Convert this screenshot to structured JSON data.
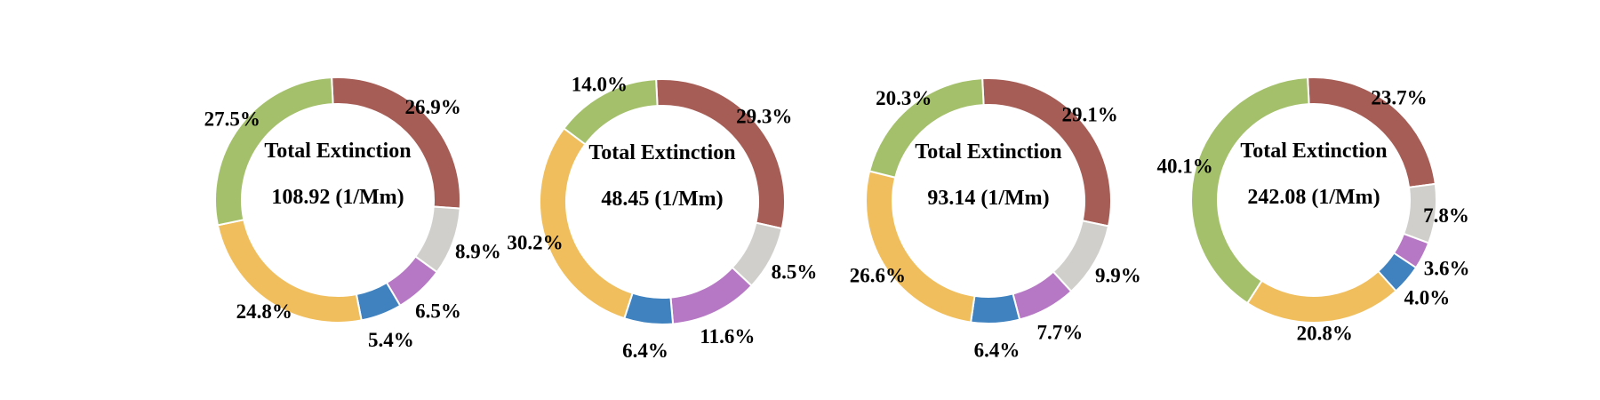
{
  "chart_data": [
    {
      "type": "pie",
      "donut": true,
      "center_title": "Total Extinction",
      "center_value": "108.92 (1/Mm)",
      "slices": [
        {
          "value": 26.9,
          "label": "26.9%",
          "color": "#a65d56"
        },
        {
          "value": 8.9,
          "label": "8.9%",
          "color": "#d0cfcb"
        },
        {
          "value": 6.5,
          "label": "6.5%",
          "color": "#b678c4"
        },
        {
          "value": 5.4,
          "label": "5.4%",
          "color": "#3f82bf"
        },
        {
          "value": 24.8,
          "label": "24.8%",
          "color": "#f0be5c"
        },
        {
          "value": 27.5,
          "label": "27.5%",
          "color": "#a4c06b"
        }
      ]
    },
    {
      "type": "pie",
      "donut": true,
      "center_title": "Total Extinction",
      "center_value": "48.45 (1/Mm)",
      "slices": [
        {
          "value": 29.3,
          "label": "29.3%",
          "color": "#a65d56"
        },
        {
          "value": 8.5,
          "label": "8.5%",
          "color": "#d0cfcb"
        },
        {
          "value": 11.6,
          "label": "11.6%",
          "color": "#b678c4"
        },
        {
          "value": 6.4,
          "label": "6.4%",
          "color": "#3f82bf"
        },
        {
          "value": 30.2,
          "label": "30.2%",
          "color": "#f0be5c"
        },
        {
          "value": 14.0,
          "label": "14.0%",
          "color": "#a4c06b"
        }
      ]
    },
    {
      "type": "pie",
      "donut": true,
      "center_title": "Total Extinction",
      "center_value": "93.14 (1/Mm)",
      "slices": [
        {
          "value": 29.1,
          "label": "29.1%",
          "color": "#a65d56"
        },
        {
          "value": 9.9,
          "label": "9.9%",
          "color": "#d0cfcb"
        },
        {
          "value": 7.7,
          "label": "7.7%",
          "color": "#b678c4"
        },
        {
          "value": 6.4,
          "label": "6.4%",
          "color": "#3f82bf"
        },
        {
          "value": 26.6,
          "label": "26.6%",
          "color": "#f0be5c"
        },
        {
          "value": 20.3,
          "label": "20.3%",
          "color": "#a4c06b"
        }
      ]
    },
    {
      "type": "pie",
      "donut": true,
      "center_title": "Total Extinction",
      "center_value": "242.08 (1/Mm)",
      "slices": [
        {
          "value": 23.7,
          "label": "23.7%",
          "color": "#a65d56"
        },
        {
          "value": 7.8,
          "label": "7.8%",
          "color": "#d0cfcb"
        },
        {
          "value": 3.6,
          "label": "3.6%",
          "color": "#b678c4"
        },
        {
          "value": 4.0,
          "label": "4.0%",
          "color": "#3f82bf"
        },
        {
          "value": 20.8,
          "label": "20.8%",
          "color": "#f0be5c"
        },
        {
          "value": 40.1,
          "label": "40.1%",
          "color": "#a4c06b"
        }
      ]
    }
  ]
}
